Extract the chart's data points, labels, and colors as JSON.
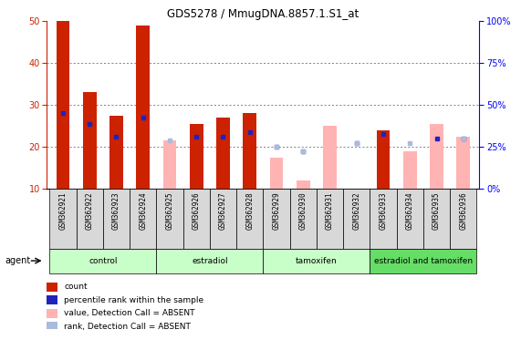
{
  "title": "GDS5278 / MmugDNA.8857.1.S1_at",
  "samples": [
    "GSM362921",
    "GSM362922",
    "GSM362923",
    "GSM362924",
    "GSM362925",
    "GSM362926",
    "GSM362927",
    "GSM362928",
    "GSM362929",
    "GSM362930",
    "GSM362931",
    "GSM362932",
    "GSM362933",
    "GSM362934",
    "GSM362935",
    "GSM362936"
  ],
  "groups": [
    {
      "name": "control",
      "indices": [
        0,
        1,
        2,
        3
      ],
      "color": "#c8ffc8"
    },
    {
      "name": "estradiol",
      "indices": [
        4,
        5,
        6,
        7
      ],
      "color": "#c8ffc8"
    },
    {
      "name": "tamoxifen",
      "indices": [
        8,
        9,
        10,
        11
      ],
      "color": "#c8ffc8"
    },
    {
      "name": "estradiol and tamoxifen",
      "indices": [
        12,
        13,
        14,
        15
      ],
      "color": "#66dd66"
    }
  ],
  "red_bars": [
    50,
    33,
    27.5,
    49,
    null,
    25.5,
    27,
    28,
    null,
    null,
    null,
    null,
    24,
    null,
    null,
    null
  ],
  "blue_squares_y": [
    28,
    25.5,
    22.5,
    27,
    null,
    22.5,
    22.5,
    23.5,
    20,
    19,
    null,
    21,
    23,
    null,
    22,
    22
  ],
  "pink_bars": [
    null,
    null,
    null,
    null,
    21.5,
    null,
    null,
    null,
    17.5,
    12,
    25,
    null,
    null,
    19,
    25.5,
    22.5
  ],
  "light_blue_squares_y": [
    null,
    null,
    null,
    null,
    21.5,
    null,
    null,
    null,
    20,
    19,
    null,
    21,
    null,
    21,
    null,
    22
  ],
  "ylim_left": [
    10,
    50
  ],
  "ylim_right": [
    0,
    100
  ],
  "yticks_left": [
    10,
    20,
    30,
    40,
    50
  ],
  "yticks_right": [
    0,
    25,
    50,
    75,
    100
  ],
  "ytick_labels_right": [
    "0%",
    "25%",
    "50%",
    "75%",
    "100%"
  ],
  "red_color": "#cc2200",
  "blue_color": "#2222bb",
  "pink_color": "#ffb3b3",
  "light_blue_color": "#aabbdd",
  "bar_width": 0.5,
  "grid_color": "#555555"
}
